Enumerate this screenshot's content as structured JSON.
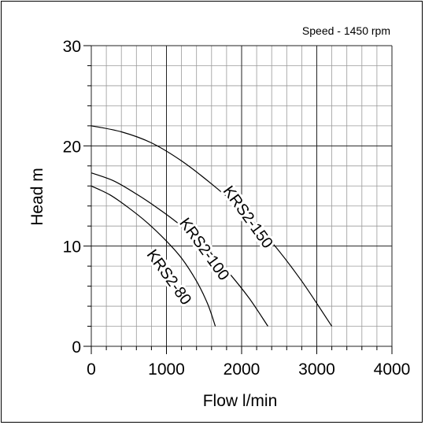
{
  "chart_data": {
    "type": "line",
    "annotation": "Speed - 1450 rpm",
    "xlabel": "Flow l/min",
    "ylabel": "Head m",
    "xlim": [
      0,
      4000
    ],
    "ylim": [
      0,
      30
    ],
    "x_ticks": [
      "0",
      "1000",
      "2000",
      "3000",
      "4000"
    ],
    "y_ticks": [
      "0",
      "10",
      "20",
      "30"
    ],
    "grid": true,
    "series": [
      {
        "name": "KRS2-150",
        "points": [
          [
            0,
            22
          ],
          [
            400,
            21.4
          ],
          [
            800,
            20.3
          ],
          [
            1200,
            18.5
          ],
          [
            1600,
            16.2
          ],
          [
            2000,
            13.6
          ],
          [
            2400,
            10.4
          ],
          [
            2800,
            6.5
          ],
          [
            3200,
            2
          ]
        ]
      },
      {
        "name": "KRS2-100",
        "points": [
          [
            0,
            17.3
          ],
          [
            300,
            16.5
          ],
          [
            600,
            15.2
          ],
          [
            900,
            13.7
          ],
          [
            1200,
            12
          ],
          [
            1500,
            10
          ],
          [
            1800,
            7.6
          ],
          [
            2100,
            4.8
          ],
          [
            2350,
            2
          ]
        ]
      },
      {
        "name": "KRS2-80",
        "points": [
          [
            0,
            16
          ],
          [
            250,
            15.1
          ],
          [
            500,
            13.8
          ],
          [
            750,
            12.3
          ],
          [
            1000,
            10.5
          ],
          [
            1200,
            8.8
          ],
          [
            1400,
            6.5
          ],
          [
            1550,
            4.2
          ],
          [
            1650,
            2
          ]
        ]
      }
    ]
  }
}
